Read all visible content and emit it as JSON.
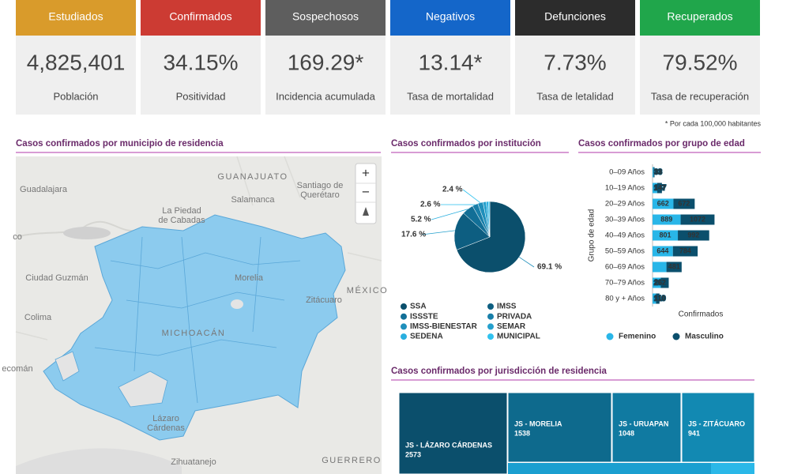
{
  "cards": [
    {
      "header": "Estudiados",
      "value": "4,825,401",
      "label": "Población",
      "color": "#d99b2b"
    },
    {
      "header": "Confirmados",
      "value": "34.15%",
      "label": "Positividad",
      "color": "#cc3b33"
    },
    {
      "header": "Sospechosos",
      "value": "169.29*",
      "label": "Incidencia acumulada",
      "color": "#5e5e5e"
    },
    {
      "header": "Negativos",
      "value": "13.14*",
      "label": "Tasa de mortalidad",
      "color": "#1466c9"
    },
    {
      "header": "Defunciones",
      "value": "7.73%",
      "label": "Tasa de letalidad",
      "color": "#2c2c2c"
    },
    {
      "header": "Recuperados",
      "value": "79.52%",
      "label": "Tasa de recuperación",
      "color": "#20a64b"
    }
  ],
  "footnote": "* Por cada 100,000 habitantes",
  "map": {
    "title": "Casos confirmados por municipio de residencia",
    "labels": [
      "GUANAJUATO",
      "Guadalajara",
      "Salamanca",
      "Santiago de",
      "Querétaro",
      "La Piedad",
      "de Cabadas",
      "co",
      "Ciudad Guzmán",
      "Colima",
      "Morelia",
      "MÉXICO",
      "MICHOACÁN",
      "Zitácuaro",
      "ecomán",
      "Lázaro",
      "Cárdenas",
      "Zihuatanejo",
      "GUERRERO"
    ],
    "controls": [
      "+",
      "−"
    ]
  },
  "pie": {
    "type": "pie",
    "title": "Casos confirmados por institución",
    "categories": [
      "SSA",
      "IMSS",
      "ISSSTE",
      "PRIVADA",
      "IMSS-BIENESTAR",
      "SEMAR",
      "SEDENA",
      "MUNICIPAL"
    ],
    "values": [
      69.1,
      17.6,
      5.2,
      2.6,
      2.4,
      1.5,
      1.0,
      0.6
    ],
    "value_labels": [
      "69.1 %",
      "17.6 %",
      "5.2 %",
      "2.6 %",
      "2.4 %",
      null,
      null,
      null
    ],
    "colors": [
      "#0b4f6c",
      "#0d5e81",
      "#126f97",
      "#197fa9",
      "#1f8fbb",
      "#25a0cd",
      "#2aafdf",
      "#31c2ef"
    ]
  },
  "age": {
    "type": "bar",
    "title": "Casos confirmados por grupo de edad",
    "categories": [
      "0–09 Años",
      "10–19 Años",
      "20–29 Años",
      "30–39 Años",
      "40–49 Años",
      "50–59 Años",
      "60–69 Años",
      "70–79 Años",
      "80 y + Años"
    ],
    "ylabel": "Grupo de edad",
    "xlabel": "Confirmados",
    "xlim": [
      0,
      2000
    ],
    "series": [
      {
        "name": "Femenino",
        "color": "#29b6e8",
        "values": [
          33,
          147,
          662,
          889,
          801,
          644,
          440,
          262,
          110
        ]
      },
      {
        "name": "Masculino",
        "color": "#0b4f6c",
        "values": [
          30,
          150,
          672,
          1072,
          992,
          784,
          481,
          250,
          110
        ]
      }
    ]
  },
  "treemap": {
    "type": "treemap",
    "title": "Casos confirmados por jurisdicción de residencia",
    "categories": [
      "JS - LÁZARO CÁRDENAS",
      "JS - MORELIA",
      "JS - URUAPAN",
      "JS - ZITÁCUARO"
    ],
    "values": [
      2573,
      1538,
      1048,
      941
    ],
    "colors": [
      "#0b4f6c",
      "#0e6a8d",
      "#107aa1",
      "#1289b2"
    ]
  }
}
